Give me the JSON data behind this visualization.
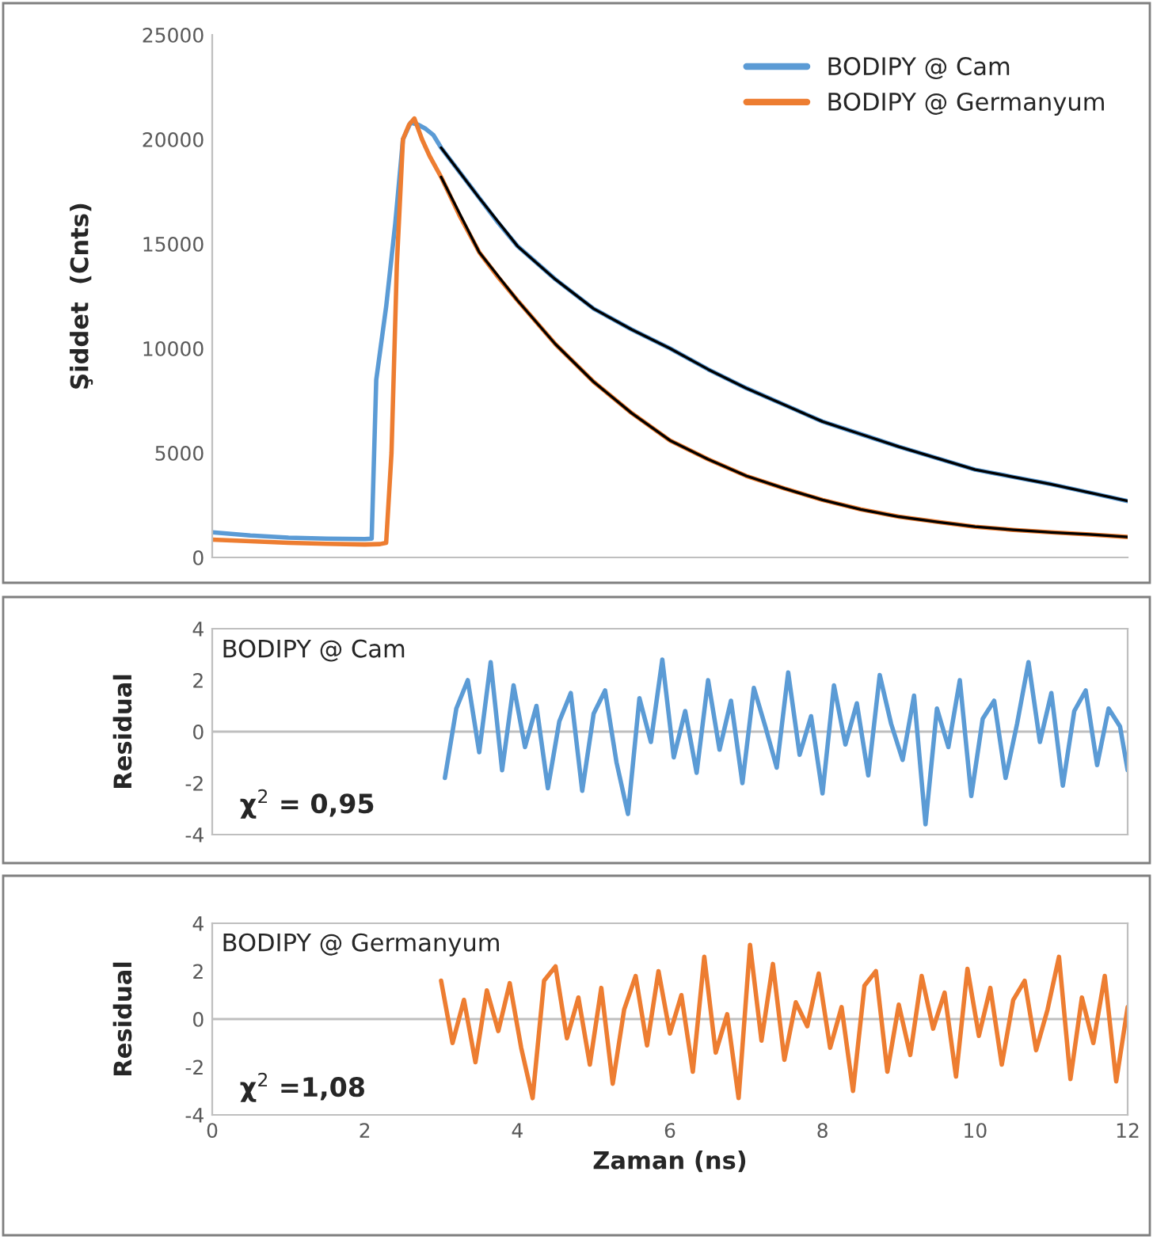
{
  "chart_data": [
    {
      "type": "line",
      "ylabel": "Şiddet  (Cnts)",
      "xlim": [
        0,
        12
      ],
      "xticks": [
        0,
        2,
        4,
        6,
        8,
        10,
        12
      ],
      "ylim": [
        0,
        25000
      ],
      "yticks": [
        0,
        5000,
        10000,
        15000,
        20000,
        25000
      ],
      "tick_labels": "y",
      "legend": "top right",
      "grid": false,
      "series": [
        {
          "name": "BODIPY @ Cam",
          "color": "#5b9bd5",
          "x": [
            0,
            0.5,
            1,
            1.5,
            2,
            2.09,
            2.15,
            2.28,
            2.4,
            2.5,
            2.6,
            2.7,
            2.8,
            2.9,
            3,
            3.25,
            3.5,
            3.75,
            4,
            4.5,
            5,
            5.5,
            6,
            6.5,
            7,
            7.5,
            8,
            8.5,
            9,
            9.5,
            10,
            10.5,
            11,
            11.5,
            12
          ],
          "values": [
            1200,
            1050,
            950,
            900,
            880,
            900,
            8500,
            12000,
            16000,
            20000,
            20800,
            20700,
            20500,
            20200,
            19600,
            18400,
            17200,
            16000,
            14900,
            13300,
            11900,
            10900,
            10000,
            9000,
            8100,
            7300,
            6500,
            5900,
            5300,
            4750,
            4200,
            3850,
            3500,
            3100,
            2700
          ]
        },
        {
          "name": "BODIPY @ Germanyum",
          "color": "#ed7d31",
          "x": [
            0,
            0.5,
            1,
            1.5,
            2,
            2.2,
            2.28,
            2.35,
            2.42,
            2.5,
            2.58,
            2.65,
            2.75,
            2.85,
            3,
            3.25,
            3.5,
            3.75,
            4,
            4.5,
            5,
            5.5,
            6,
            6.5,
            7,
            7.5,
            8,
            8.5,
            9,
            9.5,
            10,
            10.5,
            11,
            11.5,
            12
          ],
          "values": [
            850,
            780,
            700,
            650,
            620,
            640,
            700,
            5000,
            14000,
            20000,
            20700,
            21000,
            20000,
            19200,
            18200,
            16300,
            14600,
            13400,
            12300,
            10200,
            8400,
            6900,
            5600,
            4700,
            3900,
            3300,
            2750,
            2300,
            1950,
            1700,
            1470,
            1320,
            1200,
            1100,
            980
          ]
        },
        {
          "color": "#000000",
          "x": [
            3,
            3.5,
            4,
            4.5,
            5,
            5.5,
            6,
            6.5,
            7,
            7.5,
            8,
            8.5,
            9,
            9.5,
            10,
            10.5,
            11,
            11.5,
            12
          ],
          "values": [
            19600,
            17200,
            14900,
            13300,
            11900,
            10900,
            10000,
            9000,
            8100,
            7300,
            6500,
            5900,
            5300,
            4750,
            4200,
            3850,
            3500,
            3100,
            2700
          ]
        },
        {
          "color": "#000000",
          "x": [
            3,
            3.5,
            4,
            4.5,
            5,
            5.5,
            6,
            6.5,
            7,
            7.5,
            8,
            8.5,
            9,
            9.5,
            10,
            10.5,
            11,
            11.5,
            12
          ],
          "values": [
            18200,
            14600,
            12300,
            10200,
            8400,
            6900,
            5600,
            4700,
            3900,
            3300,
            2750,
            2300,
            1950,
            1700,
            1470,
            1320,
            1200,
            1100,
            980
          ]
        }
      ]
    },
    {
      "type": "line",
      "ylabel": "Residual",
      "xlim": [
        0,
        12
      ],
      "xticks": [
        0,
        2,
        4,
        6,
        8,
        10,
        12
      ],
      "ylim": [
        -4,
        4
      ],
      "yticks": [
        -4,
        -2,
        0,
        2,
        4
      ],
      "tick_labels": "y",
      "grid": false,
      "annotations": [
        "BODIPY @ Cam",
        "χ$^{2}$ = 0,95"
      ],
      "ref_lines": [
        {
          "axis": "y",
          "value": 0,
          "color": "#bfbfbf"
        }
      ],
      "series": [
        {
          "color": "#5b9bd5",
          "x": [
            3.05,
            3.2,
            3.35,
            3.5,
            3.65,
            3.8,
            3.95,
            4.1,
            4.25,
            4.4,
            4.55,
            4.7,
            4.85,
            5.0,
            5.15,
            5.3,
            5.45,
            5.6,
            5.75,
            5.9,
            6.05,
            6.2,
            6.35,
            6.5,
            6.65,
            6.8,
            6.95,
            7.1,
            7.25,
            7.4,
            7.55,
            7.7,
            7.85,
            8.0,
            8.15,
            8.3,
            8.45,
            8.6,
            8.75,
            8.9,
            9.05,
            9.2,
            9.35,
            9.5,
            9.65,
            9.8,
            9.95,
            10.1,
            10.25,
            10.4,
            10.55,
            10.7,
            10.85,
            11.0,
            11.15,
            11.3,
            11.45,
            11.6,
            11.75,
            11.9,
            12.0
          ],
          "values": [
            -1.8,
            0.9,
            2.0,
            -0.8,
            2.7,
            -1.5,
            1.8,
            -0.6,
            1.0,
            -2.2,
            0.4,
            1.5,
            -2.3,
            0.7,
            1.6,
            -1.2,
            -3.2,
            1.3,
            -0.4,
            2.8,
            -1.0,
            0.8,
            -1.6,
            2.0,
            -0.7,
            1.2,
            -2.0,
            1.7,
            0.2,
            -1.4,
            2.3,
            -0.9,
            0.6,
            -2.4,
            1.8,
            -0.5,
            1.1,
            -1.7,
            2.2,
            0.3,
            -1.1,
            1.4,
            -3.6,
            0.9,
            -0.6,
            2.0,
            -2.5,
            0.5,
            1.2,
            -1.8,
            0.3,
            2.7,
            -0.4,
            1.5,
            -2.1,
            0.8,
            1.6,
            -1.3,
            0.9,
            0.2,
            -1.5
          ]
        }
      ]
    },
    {
      "type": "line",
      "ylabel": "Residual",
      "xlabel": "Zaman (ns)",
      "xlim": [
        0,
        12
      ],
      "xticks": [
        0,
        2,
        4,
        6,
        8,
        10,
        12
      ],
      "ylim": [
        -4,
        4
      ],
      "yticks": [
        -4,
        -2,
        0,
        2,
        4
      ],
      "grid": false,
      "annotations": [
        "BODIPY @ Germanyum",
        "χ$^{2}$ =1,08"
      ],
      "ref_lines": [
        {
          "axis": "y",
          "value": 0,
          "color": "#bfbfbf"
        }
      ],
      "series": [
        {
          "color": "#ed7d31",
          "x": [
            3.0,
            3.15,
            3.3,
            3.45,
            3.6,
            3.75,
            3.9,
            4.05,
            4.2,
            4.35,
            4.5,
            4.65,
            4.8,
            4.95,
            5.1,
            5.25,
            5.4,
            5.55,
            5.7,
            5.85,
            6.0,
            6.15,
            6.3,
            6.45,
            6.6,
            6.75,
            6.9,
            7.05,
            7.2,
            7.35,
            7.5,
            7.65,
            7.8,
            7.95,
            8.1,
            8.25,
            8.4,
            8.55,
            8.7,
            8.85,
            9.0,
            9.15,
            9.3,
            9.45,
            9.6,
            9.75,
            9.9,
            10.05,
            10.2,
            10.35,
            10.5,
            10.65,
            10.8,
            10.95,
            11.1,
            11.25,
            11.4,
            11.55,
            11.7,
            11.85,
            12.0
          ],
          "values": [
            1.6,
            -1.0,
            0.8,
            -1.8,
            1.2,
            -0.5,
            1.5,
            -1.2,
            -3.3,
            1.6,
            2.2,
            -0.8,
            0.9,
            -1.9,
            1.3,
            -2.7,
            0.4,
            1.8,
            -1.1,
            2.0,
            -0.6,
            1.0,
            -2.2,
            2.6,
            -1.4,
            0.2,
            -3.3,
            3.1,
            -0.9,
            2.3,
            -1.7,
            0.7,
            -0.3,
            1.9,
            -1.2,
            0.5,
            -3.0,
            1.4,
            2.0,
            -2.2,
            0.6,
            -1.5,
            1.8,
            -0.4,
            1.1,
            -2.4,
            2.1,
            -0.7,
            1.3,
            -1.9,
            0.8,
            1.6,
            -1.3,
            0.4,
            2.6,
            -2.5,
            0.9,
            -1.0,
            1.8,
            -2.6,
            0.5
          ]
        }
      ]
    }
  ]
}
